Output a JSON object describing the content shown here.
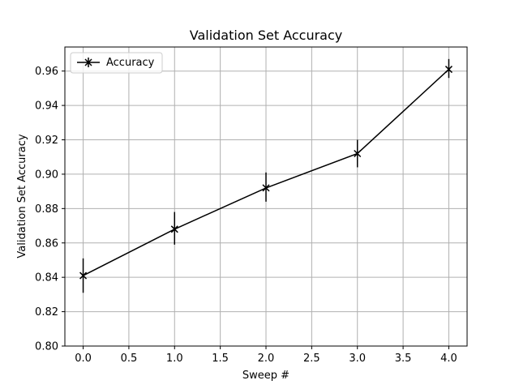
{
  "chart_data": {
    "type": "line",
    "title": "Validation Set Accuracy",
    "xlabel": "Sweep #",
    "ylabel": "Validation Set Accuracy",
    "xlim": [
      -0.2,
      4.2
    ],
    "ylim": [
      0.8,
      0.974
    ],
    "x_ticks": [
      0.0,
      0.5,
      1.0,
      1.5,
      2.0,
      2.5,
      3.0,
      3.5,
      4.0
    ],
    "x_tick_labels": [
      "0.0",
      "0.5",
      "1.0",
      "1.5",
      "2.0",
      "2.5",
      "3.0",
      "3.5",
      "4.0"
    ],
    "y_ticks": [
      0.8,
      0.82,
      0.84,
      0.86,
      0.88,
      0.9,
      0.92,
      0.94,
      0.96
    ],
    "y_tick_labels": [
      "0.80",
      "0.82",
      "0.84",
      "0.86",
      "0.88",
      "0.90",
      "0.92",
      "0.94",
      "0.96"
    ],
    "grid": true,
    "legend_position": "upper-left",
    "series": [
      {
        "name": "Accuracy",
        "color": "#000000",
        "marker": "x",
        "x": [
          0,
          1,
          2,
          3,
          4
        ],
        "y": [
          0.841,
          0.868,
          0.892,
          0.912,
          0.961
        ],
        "yerr_low": [
          0.831,
          0.859,
          0.884,
          0.904,
          0.956
        ],
        "yerr_high": [
          0.851,
          0.878,
          0.901,
          0.92,
          0.967
        ]
      }
    ]
  }
}
